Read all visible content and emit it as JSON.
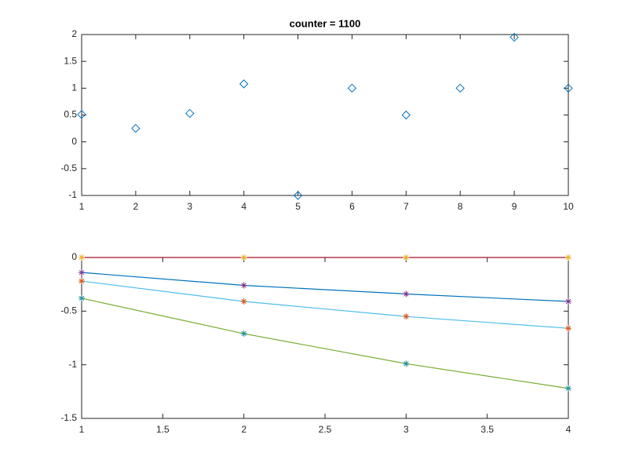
{
  "chart_data": [
    {
      "type": "scatter",
      "title": "counter = 1100",
      "marker": "diamond",
      "color": "#0072bd",
      "x": [
        1,
        2,
        3,
        4,
        5,
        6,
        7,
        8,
        9,
        10
      ],
      "values": [
        0.51,
        0.25,
        0.53,
        1.08,
        -1,
        1,
        0.5,
        1,
        1.95,
        1
      ],
      "xlim": [
        1,
        10
      ],
      "xticks": [
        1,
        2,
        3,
        4,
        5,
        6,
        7,
        8,
        9,
        10
      ],
      "ylim": [
        -1,
        2
      ],
      "yticks": [
        -1,
        -0.5,
        0,
        0.5,
        1,
        1.5,
        2
      ]
    },
    {
      "type": "line",
      "marker": "star",
      "x": [
        1,
        2,
        3,
        4
      ],
      "series": [
        {
          "color": "#a2142f",
          "marker_color": "#edb120",
          "values": [
            0,
            0,
            0,
            0
          ]
        },
        {
          "color": "#0072bd",
          "marker_color": "#7e2f8e",
          "values": [
            -0.14,
            -0.26,
            -0.34,
            -0.41
          ]
        },
        {
          "color": "#4dbeee",
          "marker_color": "#d95319",
          "values": [
            -0.22,
            -0.41,
            -0.55,
            -0.66
          ]
        },
        {
          "color": "#77ac30",
          "marker_color": "#1f8f9f",
          "values": [
            -0.38,
            -0.71,
            -0.99,
            -1.22
          ]
        }
      ],
      "xlim": [
        1,
        4
      ],
      "xticks": [
        1,
        1.5,
        2,
        2.5,
        3,
        3.5,
        4
      ],
      "ylim": [
        -1.5,
        0
      ],
      "yticks": [
        -1.5,
        -1,
        -0.5,
        0
      ]
    }
  ]
}
